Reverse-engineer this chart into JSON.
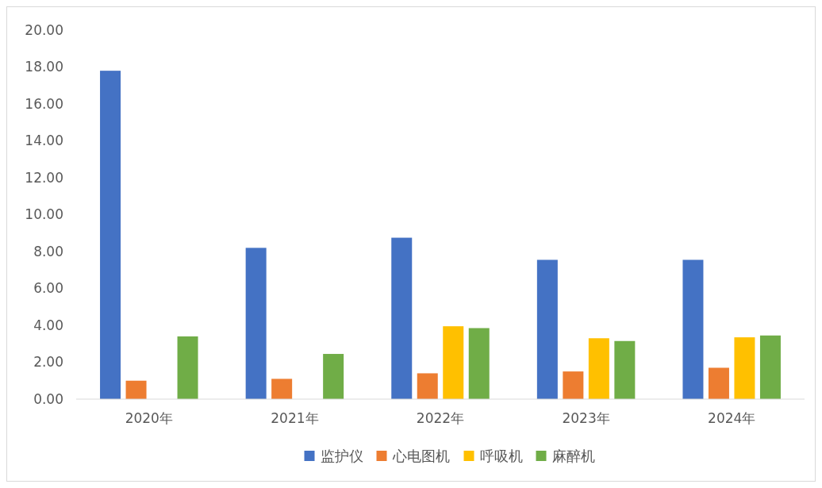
{
  "chart_data": {
    "type": "bar",
    "categories": [
      "2020年",
      "2021年",
      "2022年",
      "2023年",
      "2024年"
    ],
    "series": [
      {
        "name": "监护仪",
        "color": "#4472c4",
        "values": [
          17.8,
          8.2,
          8.75,
          7.55,
          7.55
        ]
      },
      {
        "name": "心电图机",
        "color": "#ed7d31",
        "values": [
          1.0,
          1.1,
          1.4,
          1.5,
          1.7
        ]
      },
      {
        "name": "呼吸机",
        "color": "#ffc000",
        "values": [
          null,
          null,
          3.95,
          3.3,
          3.35
        ]
      },
      {
        "name": "麻醉机",
        "color": "#70ad47",
        "values": [
          3.4,
          2.45,
          3.85,
          3.15,
          3.45
        ]
      }
    ],
    "ylim": [
      0,
      20
    ],
    "yticks": [
      {
        "value": 0,
        "label": "0.00"
      },
      {
        "value": 2,
        "label": "2.00"
      },
      {
        "value": 4,
        "label": "4.00"
      },
      {
        "value": 6,
        "label": "6.00"
      },
      {
        "value": 8,
        "label": "8.00"
      },
      {
        "value": 10,
        "label": "10.00"
      },
      {
        "value": 12,
        "label": "12.00"
      },
      {
        "value": 14,
        "label": "14.00"
      },
      {
        "value": 16,
        "label": "16.00"
      },
      {
        "value": 18,
        "label": "18.00"
      },
      {
        "value": 20,
        "label": "20.00"
      }
    ],
    "legend": "bottom"
  }
}
